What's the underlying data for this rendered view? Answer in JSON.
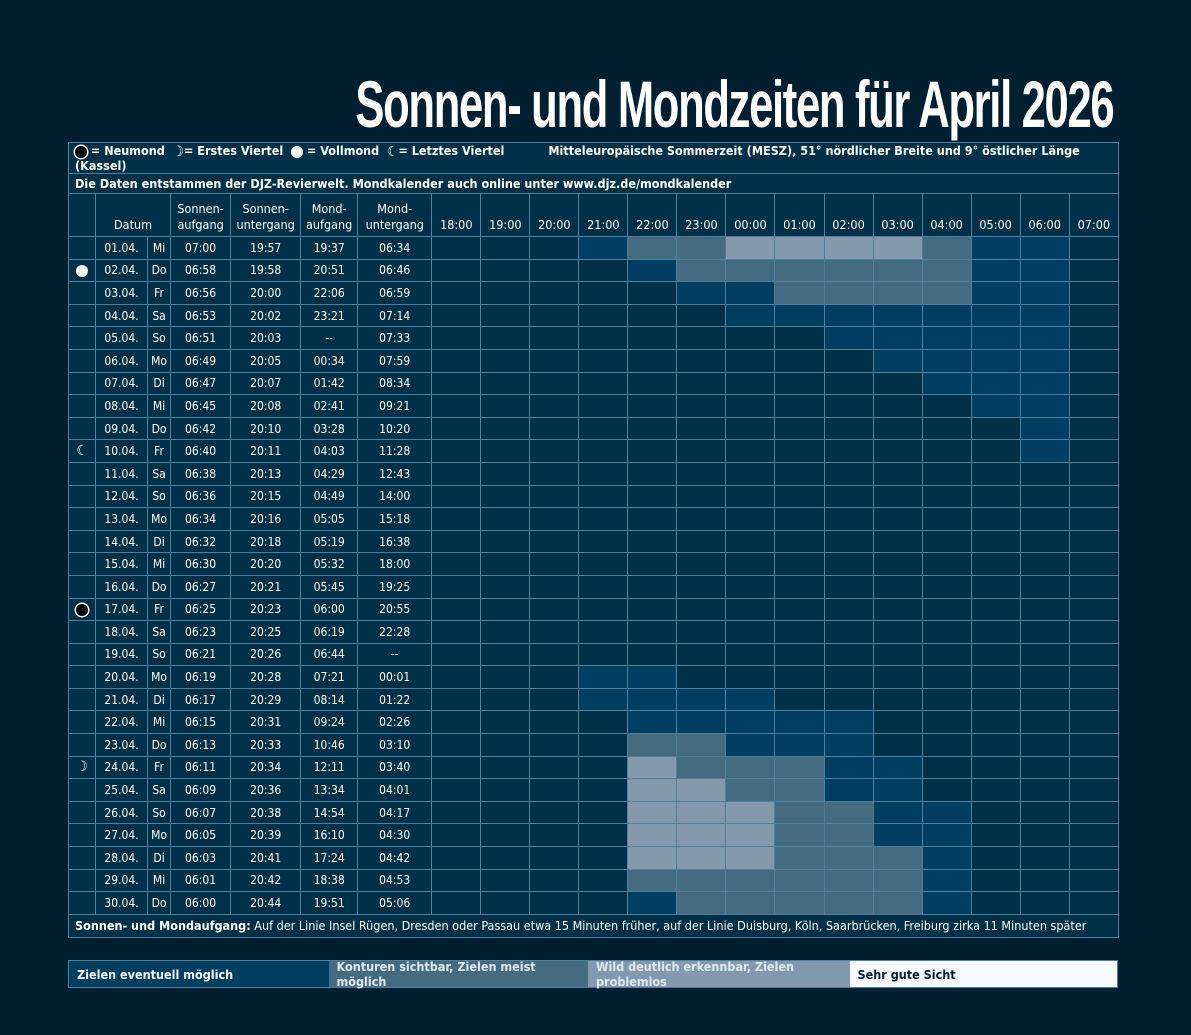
{
  "title": "Sonnen- und Mondzeiten für April 2026",
  "info": {
    "legend_new": "= Neumond",
    "legend_first": "= Erstes Viertel",
    "legend_full": "= Vollmond",
    "legend_last": "= Letztes Viertel",
    "timezone": "Mitteleuropäische Sommerzeit (MESZ), 51° nördlicher Breite und 9° östlicher Länge (Kassel)",
    "source": "Die Daten entstammen der DJZ-Revierwelt. Mondkalender auch online unter www.djz.de/mondkalender"
  },
  "headers": {
    "datum": "Datum",
    "sa1": "Sonnen-",
    "sa2": "aufgang",
    "su1": "Sonnen-",
    "su2": "untergang",
    "ma1": "Mond-",
    "ma2": "aufgang",
    "mu1": "Mond-",
    "mu2": "untergang"
  },
  "footer": {
    "bold": "Sonnen- und Mondaufgang:",
    "text": " Auf der Linie Insel Rügen, Dresden oder Passau etwa 15 Minuten früher, auf der Linie Duisburg, Köln, Saarbrücken, Freiburg zirka 11 Minuten später"
  },
  "legend": [
    {
      "label": "Zielen eventuell möglich",
      "color": "#003f62"
    },
    {
      "label": "Konturen sichtbar, Zielen meist möglich",
      "color": "#456b80"
    },
    {
      "label": "Wild deutlich erkennbar, Zielen problemlos",
      "color": "#8499ae"
    },
    {
      "label": "Sehr gute Sicht",
      "color": "#f5f9ff"
    }
  ],
  "chart_data": {
    "type": "heatmap",
    "title": "Sonnen- und Mondzeiten für April 2026",
    "hours": [
      "18:00",
      "19:00",
      "20:00",
      "21:00",
      "22:00",
      "23:00",
      "00:00",
      "01:00",
      "02:00",
      "03:00",
      "04:00",
      "05:00",
      "06:00",
      "07:00"
    ],
    "levels_legend": [
      "keine",
      "Zielen eventuell möglich",
      "Konturen sichtbar, Zielen meist möglich",
      "Wild deutlich erkennbar, Zielen problemlos",
      "Sehr gute Sicht"
    ],
    "rows": [
      {
        "date": "01.04.",
        "day": "Mi",
        "phase": "",
        "sa": "07:00",
        "su": "19:57",
        "ma": "19:37",
        "mu": "06:34",
        "levels": [
          0,
          0,
          0,
          1,
          2,
          2,
          3,
          3,
          3,
          3,
          2,
          1,
          1,
          0
        ]
      },
      {
        "date": "02.04.",
        "day": "Do",
        "phase": "full",
        "sa": "06:58",
        "su": "19:58",
        "ma": "20:51",
        "mu": "06:46",
        "levels": [
          0,
          0,
          0,
          0,
          1,
          2,
          2,
          2,
          2,
          2,
          2,
          1,
          1,
          0
        ]
      },
      {
        "date": "03.04.",
        "day": "Fr",
        "phase": "",
        "sa": "06:56",
        "su": "20:00",
        "ma": "22:06",
        "mu": "06:59",
        "levels": [
          0,
          0,
          0,
          0,
          0,
          1,
          1,
          2,
          2,
          2,
          2,
          1,
          1,
          0
        ]
      },
      {
        "date": "04.04.",
        "day": "Sa",
        "phase": "",
        "sa": "06:53",
        "su": "20:02",
        "ma": "23:21",
        "mu": "07:14",
        "levels": [
          0,
          0,
          0,
          0,
          0,
          0,
          1,
          1,
          1,
          1,
          1,
          1,
          1,
          0
        ]
      },
      {
        "date": "05.04.",
        "day": "So",
        "phase": "",
        "sa": "06:51",
        "su": "20:03",
        "ma": "--",
        "mu": "07:33",
        "levels": [
          0,
          0,
          0,
          0,
          0,
          0,
          0,
          0,
          1,
          1,
          1,
          1,
          1,
          0
        ]
      },
      {
        "date": "06.04.",
        "day": "Mo",
        "phase": "",
        "sa": "06:49",
        "su": "20:05",
        "ma": "00:34",
        "mu": "07:59",
        "levels": [
          0,
          0,
          0,
          0,
          0,
          0,
          0,
          0,
          0,
          1,
          1,
          1,
          1,
          0
        ]
      },
      {
        "date": "07.04.",
        "day": "Di",
        "phase": "",
        "sa": "06:47",
        "su": "20:07",
        "ma": "01:42",
        "mu": "08:34",
        "levels": [
          0,
          0,
          0,
          0,
          0,
          0,
          0,
          0,
          0,
          0,
          1,
          1,
          1,
          0
        ]
      },
      {
        "date": "08.04.",
        "day": "Mi",
        "phase": "",
        "sa": "06:45",
        "su": "20:08",
        "ma": "02:41",
        "mu": "09:21",
        "levels": [
          0,
          0,
          0,
          0,
          0,
          0,
          0,
          0,
          0,
          0,
          0,
          1,
          1,
          0
        ]
      },
      {
        "date": "09.04.",
        "day": "Do",
        "phase": "",
        "sa": "06:42",
        "su": "20:10",
        "ma": "03:28",
        "mu": "10:20",
        "levels": [
          0,
          0,
          0,
          0,
          0,
          0,
          0,
          0,
          0,
          0,
          0,
          0,
          1,
          0
        ]
      },
      {
        "date": "10.04.",
        "day": "Fr",
        "phase": "last",
        "sa": "06:40",
        "su": "20:11",
        "ma": "04:03",
        "mu": "11:28",
        "levels": [
          0,
          0,
          0,
          0,
          0,
          0,
          0,
          0,
          0,
          0,
          0,
          0,
          1,
          0
        ]
      },
      {
        "date": "11.04.",
        "day": "Sa",
        "phase": "",
        "sa": "06:38",
        "su": "20:13",
        "ma": "04:29",
        "mu": "12:43",
        "levels": [
          0,
          0,
          0,
          0,
          0,
          0,
          0,
          0,
          0,
          0,
          0,
          0,
          0,
          0
        ]
      },
      {
        "date": "12.04.",
        "day": "So",
        "phase": "",
        "sa": "06:36",
        "su": "20:15",
        "ma": "04:49",
        "mu": "14:00",
        "levels": [
          0,
          0,
          0,
          0,
          0,
          0,
          0,
          0,
          0,
          0,
          0,
          0,
          0,
          0
        ]
      },
      {
        "date": "13.04.",
        "day": "Mo",
        "phase": "",
        "sa": "06:34",
        "su": "20:16",
        "ma": "05:05",
        "mu": "15:18",
        "levels": [
          0,
          0,
          0,
          0,
          0,
          0,
          0,
          0,
          0,
          0,
          0,
          0,
          0,
          0
        ]
      },
      {
        "date": "14.04.",
        "day": "Di",
        "phase": "",
        "sa": "06:32",
        "su": "20:18",
        "ma": "05:19",
        "mu": "16:38",
        "levels": [
          0,
          0,
          0,
          0,
          0,
          0,
          0,
          0,
          0,
          0,
          0,
          0,
          0,
          0
        ]
      },
      {
        "date": "15.04.",
        "day": "Mi",
        "phase": "",
        "sa": "06:30",
        "su": "20:20",
        "ma": "05:32",
        "mu": "18:00",
        "levels": [
          0,
          0,
          0,
          0,
          0,
          0,
          0,
          0,
          0,
          0,
          0,
          0,
          0,
          0
        ]
      },
      {
        "date": "16.04.",
        "day": "Do",
        "phase": "",
        "sa": "06:27",
        "su": "20:21",
        "ma": "05:45",
        "mu": "19:25",
        "levels": [
          0,
          0,
          0,
          0,
          0,
          0,
          0,
          0,
          0,
          0,
          0,
          0,
          0,
          0
        ]
      },
      {
        "date": "17.04.",
        "day": "Fr",
        "phase": "new",
        "sa": "06:25",
        "su": "20:23",
        "ma": "06:00",
        "mu": "20:55",
        "levels": [
          0,
          0,
          0,
          0,
          0,
          0,
          0,
          0,
          0,
          0,
          0,
          0,
          0,
          0
        ]
      },
      {
        "date": "18.04.",
        "day": "Sa",
        "phase": "",
        "sa": "06:23",
        "su": "20:25",
        "ma": "06:19",
        "mu": "22:28",
        "levels": [
          0,
          0,
          0,
          0,
          0,
          0,
          0,
          0,
          0,
          0,
          0,
          0,
          0,
          0
        ]
      },
      {
        "date": "19.04.",
        "day": "So",
        "phase": "",
        "sa": "06:21",
        "su": "20:26",
        "ma": "06:44",
        "mu": "--",
        "levels": [
          0,
          0,
          0,
          0,
          0,
          0,
          0,
          0,
          0,
          0,
          0,
          0,
          0,
          0
        ]
      },
      {
        "date": "20.04.",
        "day": "Mo",
        "phase": "",
        "sa": "06:19",
        "su": "20:28",
        "ma": "07:21",
        "mu": "00:01",
        "levels": [
          0,
          0,
          0,
          1,
          1,
          0,
          0,
          0,
          0,
          0,
          0,
          0,
          0,
          0
        ]
      },
      {
        "date": "21.04.",
        "day": "Di",
        "phase": "",
        "sa": "06:17",
        "su": "20:29",
        "ma": "08:14",
        "mu": "01:22",
        "levels": [
          0,
          0,
          0,
          1,
          1,
          1,
          1,
          0,
          0,
          0,
          0,
          0,
          0,
          0
        ]
      },
      {
        "date": "22.04.",
        "day": "Mi",
        "phase": "",
        "sa": "06:15",
        "su": "20:31",
        "ma": "09:24",
        "mu": "02:26",
        "levels": [
          0,
          0,
          0,
          0,
          1,
          1,
          1,
          1,
          1,
          0,
          0,
          0,
          0,
          0
        ]
      },
      {
        "date": "23.04.",
        "day": "Do",
        "phase": "",
        "sa": "06:13",
        "su": "20:33",
        "ma": "10:46",
        "mu": "03:10",
        "levels": [
          0,
          0,
          0,
          0,
          2,
          2,
          1,
          1,
          1,
          0,
          0,
          0,
          0,
          0
        ]
      },
      {
        "date": "24.04.",
        "day": "Fr",
        "phase": "first",
        "sa": "06:11",
        "su": "20:34",
        "ma": "12:11",
        "mu": "03:40",
        "levels": [
          0,
          0,
          0,
          0,
          3,
          2,
          2,
          2,
          1,
          1,
          0,
          0,
          0,
          0
        ]
      },
      {
        "date": "25.04.",
        "day": "Sa",
        "phase": "",
        "sa": "06:09",
        "su": "20:36",
        "ma": "13:34",
        "mu": "04:01",
        "levels": [
          0,
          0,
          0,
          0,
          3,
          3,
          2,
          2,
          1,
          1,
          0,
          0,
          0,
          0
        ]
      },
      {
        "date": "26.04.",
        "day": "So",
        "phase": "",
        "sa": "06:07",
        "su": "20:38",
        "ma": "14:54",
        "mu": "04:17",
        "levels": [
          0,
          0,
          0,
          0,
          3,
          3,
          3,
          2,
          2,
          1,
          1,
          0,
          0,
          0
        ]
      },
      {
        "date": "27.04.",
        "day": "Mo",
        "phase": "",
        "sa": "06:05",
        "su": "20:39",
        "ma": "16:10",
        "mu": "04:30",
        "levels": [
          0,
          0,
          0,
          0,
          3,
          3,
          3,
          2,
          2,
          1,
          1,
          0,
          0,
          0
        ]
      },
      {
        "date": "28.04.",
        "day": "Di",
        "phase": "",
        "sa": "06:03",
        "su": "20:41",
        "ma": "17:24",
        "mu": "04:42",
        "levels": [
          0,
          0,
          0,
          0,
          3,
          3,
          3,
          2,
          2,
          2,
          1,
          0,
          0,
          0
        ]
      },
      {
        "date": "29.04.",
        "day": "Mi",
        "phase": "",
        "sa": "06:01",
        "su": "20:42",
        "ma": "18:38",
        "mu": "04:53",
        "levels": [
          0,
          0,
          0,
          0,
          2,
          2,
          2,
          2,
          2,
          2,
          1,
          0,
          0,
          0
        ]
      },
      {
        "date": "30.04.",
        "day": "Do",
        "phase": "",
        "sa": "06:00",
        "su": "20:44",
        "ma": "19:51",
        "mu": "05:06",
        "levels": [
          0,
          0,
          0,
          0,
          1,
          2,
          2,
          2,
          2,
          2,
          1,
          0,
          0,
          0
        ]
      }
    ]
  }
}
